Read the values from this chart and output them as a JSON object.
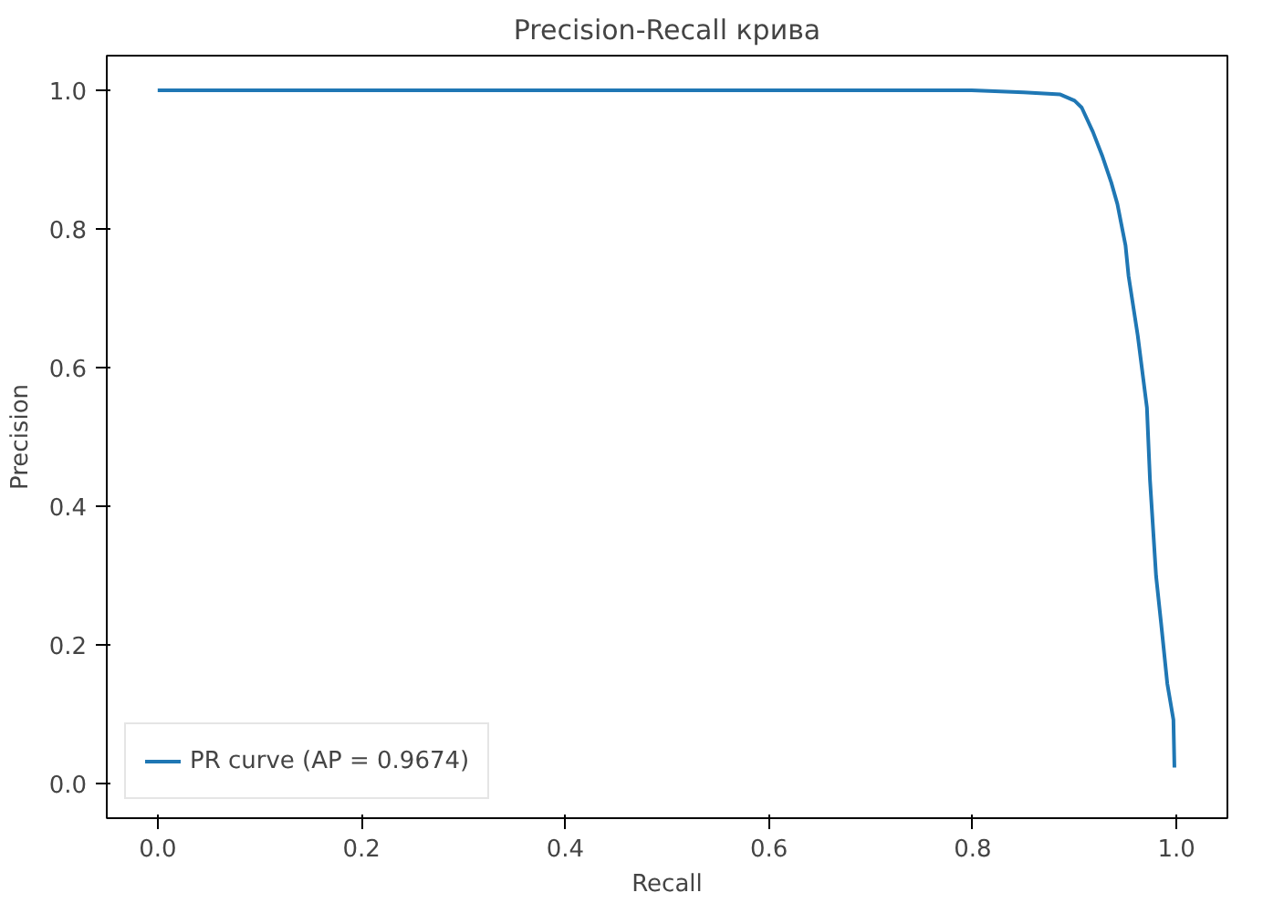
{
  "chart_data": {
    "type": "line",
    "title": "Precision-Recall крива",
    "xlabel": "Recall",
    "ylabel": "Precision",
    "xlim": [
      -0.05,
      1.05
    ],
    "ylim": [
      -0.05,
      1.05
    ],
    "xticks": [
      {
        "value": 0,
        "label": "0.0"
      },
      0.2,
      0.4,
      0.6,
      0.8,
      {
        "value": 1,
        "label": "1.0"
      }
    ],
    "yticks": [
      {
        "value": 0,
        "label": "0.0"
      },
      0.2,
      0.4,
      0.6,
      0.8,
      {
        "value": 1,
        "label": "1.0"
      }
    ],
    "grid": false,
    "legend": "bottom left",
    "marker": "none",
    "line_style": "solid",
    "series": [
      {
        "name": "PR curve (AP = 0.9674)",
        "color": "#1f77b4",
        "x": [
          0.0,
          0.2,
          0.4,
          0.6,
          0.799,
          0.85,
          0.886,
          0.9,
          0.907,
          0.918,
          0.927,
          0.936,
          0.942,
          0.95,
          0.953,
          0.962,
          0.971,
          0.974,
          0.98,
          0.985,
          0.991,
          0.997,
          0.998
        ],
        "values": [
          1.0,
          1.0,
          1.0,
          1.0,
          1.0,
          0.997,
          0.994,
          0.985,
          0.975,
          0.94,
          0.906,
          0.867,
          0.836,
          0.776,
          0.732,
          0.646,
          0.542,
          0.438,
          0.299,
          0.23,
          0.144,
          0.092,
          0.023
        ]
      }
    ]
  }
}
